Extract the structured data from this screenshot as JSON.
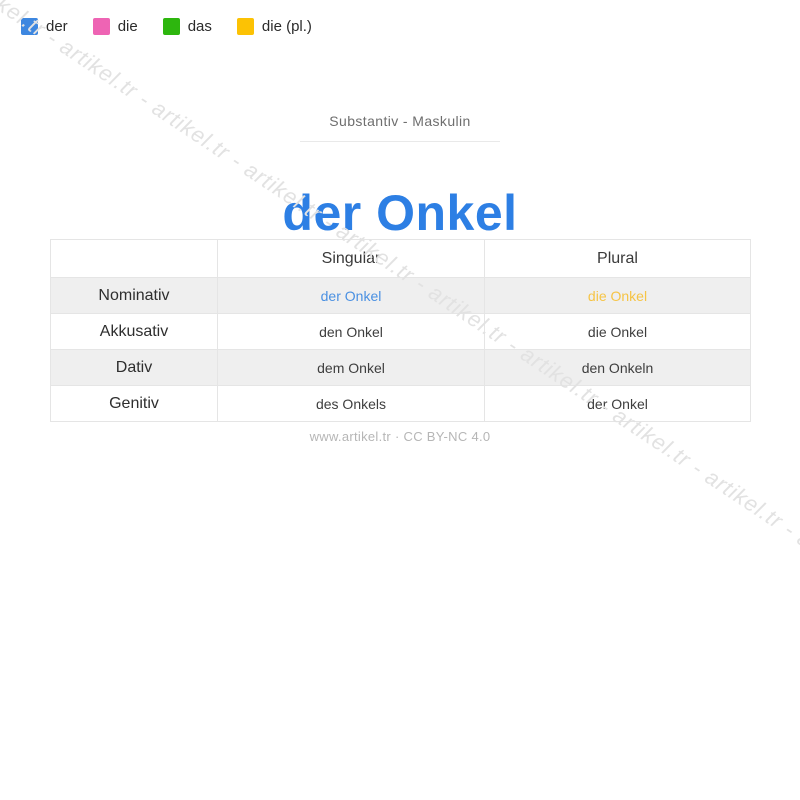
{
  "legend": {
    "items": [
      {
        "label": "der",
        "color": "#3d87e0"
      },
      {
        "label": "die",
        "color": "#ee64b4"
      },
      {
        "label": "das",
        "color": "#2db60e"
      },
      {
        "label": "die (pl.)",
        "color": "#fcc204"
      }
    ]
  },
  "header": {
    "subtitle": "Substantiv - Maskulin",
    "title": "der Onkel",
    "title_color": "#2d7fe4"
  },
  "table": {
    "columns": [
      "",
      "Singular",
      "Plural"
    ],
    "stripe_color": "#efefef",
    "rows": [
      {
        "label": "Nominativ",
        "singular": "der Onkel",
        "plural": "die Onkel",
        "singular_color": "#4a90e2",
        "plural_color": "#f6c445"
      },
      {
        "label": "Akkusativ",
        "singular": "den Onkel",
        "plural": "die Onkel"
      },
      {
        "label": "Dativ",
        "singular": "dem Onkel",
        "plural": "den Onkeln"
      },
      {
        "label": "Genitiv",
        "singular": "des Onkels",
        "plural": "der Onkel"
      }
    ]
  },
  "footer": {
    "text": "www.artikel.tr · CC BY-NC 4.0"
  },
  "watermark": {
    "color": "#e2e2e2",
    "text": "artikel.tr - artikel.tr - artikel.tr - artikel.tr - artikel.tr - artikel.tr - artikel.tr - artikel.tr - artikel.tr - artikel.tr - artikel.tr - artikel.tr"
  }
}
